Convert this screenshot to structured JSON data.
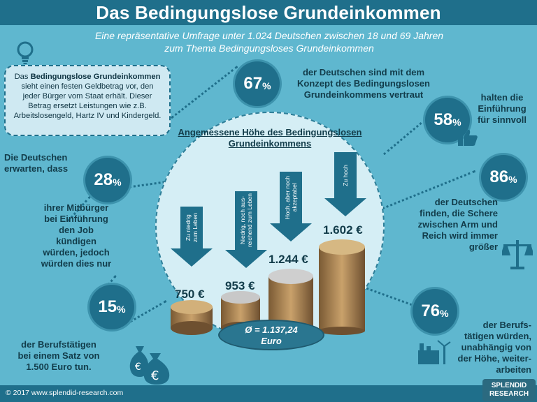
{
  "title": "Das Bedingungslose Grundeinkommen",
  "subtitle": [
    "Eine repräsentative Umfrage unter 1.024 Deutschen zwischen 18 und 69 Jahren",
    "zum Thema Bedingungsloses Grundeinkommen"
  ],
  "definition": {
    "lead": "Das ",
    "bold": "Bedingungslose Grundeinkommen",
    "rest": " sieht einen festen Geldbetrag vor, den jeder Bürger vom Staat erhält. Dieser Betrag ersetzt Leistungen wie z.B. Arbeitslosengeld, Hartz IV und Kindergeld."
  },
  "stats": {
    "s67": {
      "value": "67",
      "unit": "%",
      "text": "der Deutschen sind mit dem Konzept des Bedingungslosen Grundeinkommens vertraut"
    },
    "s58": {
      "value": "58",
      "unit": "%",
      "text": "halten die Einführung für sinnvoll"
    },
    "s28": {
      "value": "28",
      "unit": "%",
      "pre": "Die Deutschen erwarten, dass",
      "text": "ihrer Mitbürger bei Einführung den Job kündigen würden, jedoch würden dies nur"
    },
    "s15": {
      "value": "15",
      "unit": "%",
      "text": "der Berufstätigen bei einem Satz von 1.500 Euro tun."
    },
    "s86": {
      "value": "86",
      "unit": "%",
      "text": "der Deutschen finden, die Schere zwischen Arm und Reich wird immer größer"
    },
    "s76": {
      "value": "76",
      "unit": "%",
      "text": "der Berufs-tätigen würden, unabhängig von der Höhe, weiter-arbeiten"
    }
  },
  "chart": {
    "title": "Angemessene Höhe des Bedingungslosen Grundeinkommens",
    "arrows": [
      {
        "label": "Zu niedrig\nzum Leben",
        "price": "750 €"
      },
      {
        "label": "Niedrig, noch aus-\nreichend zum Leben",
        "price": "953 €"
      },
      {
        "label": "Hoch, aber noch\nakzeptabel",
        "price": "1.244 €"
      },
      {
        "label": "Zu hoch",
        "price": "1.602 €"
      }
    ],
    "average": [
      "Ø = 1.137,24",
      "Euro"
    ]
  },
  "footer": "© 2017 www.splendid-research.com",
  "logo": [
    "SPLENDID",
    "RESEARCH"
  ],
  "colors": {
    "background": "#5fb7cf",
    "primary": "#1f6f8b",
    "light": "#d5eef5",
    "coin": "#b8956a"
  }
}
